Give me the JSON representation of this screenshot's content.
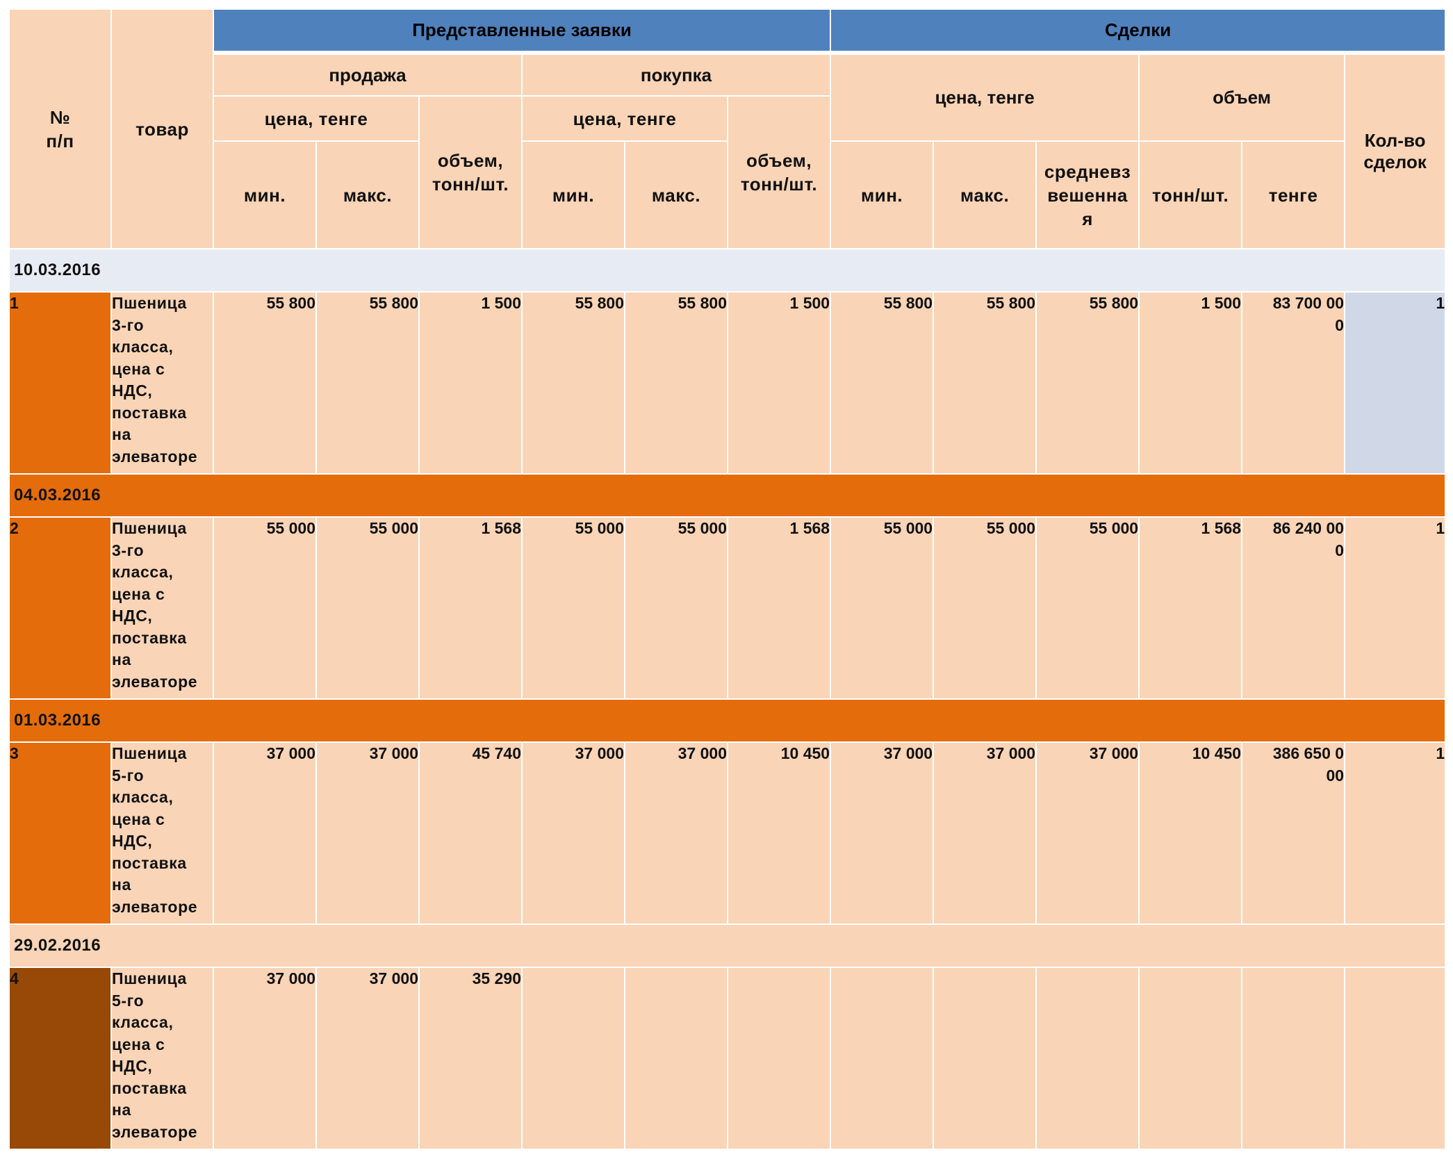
{
  "table": {
    "headers": {
      "num": "№\nп/п",
      "product": "товар",
      "orders": "Представленные заявки",
      "deals": "Сделки",
      "sale": "продажа",
      "purchase": "покупка",
      "price_tenge": "цена, тенге",
      "volume_tonnes": "объем,\nтонн/шт.",
      "min": "мин.",
      "max": "макс.",
      "deal_price": "цена, тенге",
      "deal_volume": "объем",
      "weighted_avg": "средневз\nвешенна\nя",
      "tonnes_pcs": "тонн/шт.",
      "tenge": "тенге",
      "deal_count": "Кол-во\nсделок"
    },
    "groups": [
      {
        "date": "10.03.2016",
        "date_style": "light",
        "row": {
          "idx": "1",
          "product": "Пшеница\n3-го\nкласса,\nцена с\nНДС,\nпоставка\nна\nэлеваторе",
          "sale_min": "55 800",
          "sale_max": "55 800",
          "sale_volume": "1 500",
          "buy_min": "55 800",
          "buy_max": "55 800",
          "buy_volume": "1 500",
          "deal_min": "55 800",
          "deal_max": "55 800",
          "deal_avg": "55 800",
          "deal_tonnes": "1 500",
          "deal_tenge": "83 700 00\n0",
          "deal_count": "1"
        }
      },
      {
        "date": "04.03.2016",
        "date_style": "orange",
        "row": {
          "idx": "2",
          "product": "Пшеница\n3-го\nкласса,\nцена с\nНДС,\nпоставка\nна\nэлеваторе",
          "sale_min": "55 000",
          "sale_max": "55 000",
          "sale_volume": "1 568",
          "buy_min": "55 000",
          "buy_max": "55 000",
          "buy_volume": "1 568",
          "deal_min": "55 000",
          "deal_max": "55 000",
          "deal_avg": "55 000",
          "deal_tonnes": "1 568",
          "deal_tenge": "86 240 00\n0",
          "deal_count": "1"
        }
      },
      {
        "date": "01.03.2016",
        "date_style": "orange",
        "row": {
          "idx": "3",
          "product": "Пшеница\n5-го\nкласса,\nцена с\nНДС,\nпоставка\nна\nэлеваторе",
          "sale_min": "37 000",
          "sale_max": "37 000",
          "sale_volume": "45 740",
          "buy_min": "37 000",
          "buy_max": "37 000",
          "buy_volume": "10 450",
          "deal_min": "37 000",
          "deal_max": "37 000",
          "deal_avg": "37 000",
          "deal_tonnes": "10 450",
          "deal_tenge": "386 650 0\n00",
          "deal_count": "1"
        }
      },
      {
        "date": "29.02.2016",
        "date_style": "peach",
        "row": {
          "idx": "4",
          "product": "Пшеница\n5-го\nкласса,\nцена с\nНДС,\nпоставка\nна\nэлеваторе",
          "sale_min": "37 000",
          "sale_max": "37 000",
          "sale_volume": "35 290",
          "buy_min": "",
          "buy_max": "",
          "buy_volume": "",
          "deal_min": "",
          "deal_max": "",
          "deal_avg": "",
          "deal_tonnes": "",
          "deal_tenge": "",
          "deal_count": ""
        }
      }
    ]
  }
}
